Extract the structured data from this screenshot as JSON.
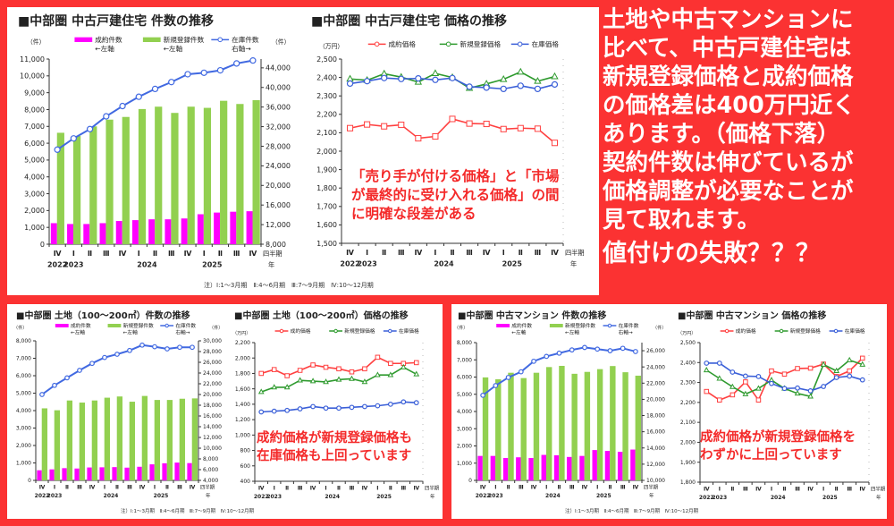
{
  "colors": {
    "background": "#fb3232",
    "contract": "#ff00ff",
    "new_listing": "#92d050",
    "stock": "#4169e1",
    "price_contract": "#ff4040",
    "price_new": "#2e9a2e",
    "price_stock": "#3a5fd8"
  },
  "message": {
    "lines": [
      "土地や中古マンションに",
      "比べて、中古戸建住宅は",
      "新規登録価格と成約価格",
      "の価格差は400万円近く",
      "あります。（価格下落）",
      "契約件数は伸びているが",
      "価格調整が必要なことが",
      "見て取れます。"
    ],
    "headline": "値付けの失敗？？？"
  },
  "footnote": "注）Ⅰ:1〜3月期　Ⅱ:4〜6月期　Ⅲ:7〜9月期　Ⅳ:10〜12月期",
  "annotations": {
    "house_price": [
      "「売り手が付ける価格」と「市場",
      "が最終的に受け入れる価格」の間",
      "に明確な段差がある"
    ],
    "land_price": [
      "成約価格が新規登録価格も",
      "在庫価格も上回っています"
    ],
    "mansion_price": [
      "成約価格が新規登録価格を",
      "わずかに上回っています"
    ]
  },
  "chart_data": [
    {
      "type": "bar+line",
      "title": "■中部圏 中古戸建住宅 件数の推移",
      "categories": [
        "Ⅳ",
        "Ⅰ",
        "Ⅱ",
        "Ⅲ",
        "Ⅳ",
        "Ⅰ",
        "Ⅱ",
        "Ⅲ",
        "Ⅳ",
        "Ⅰ",
        "Ⅱ",
        "Ⅲ",
        "Ⅳ"
      ],
      "years": [
        {
          "label": "2022",
          "at": 0
        },
        {
          "label": "2023",
          "at": 1
        },
        {
          "label": "2024",
          "at": 5.5
        },
        {
          "label": "2025",
          "at": 9.5
        }
      ],
      "xaxis_suffix": [
        "四半期",
        "年"
      ],
      "ylabel_left": "（件）",
      "ylabel_right": "（件）",
      "ylim_left": [
        0,
        11000
      ],
      "ystep_left": 1000,
      "ylim_right": [
        8000,
        45800
      ],
      "yticks_right": [
        8000,
        12000,
        16000,
        20000,
        24000,
        28000,
        32000,
        36000,
        40000,
        44000
      ],
      "series": [
        {
          "name": "成約件数",
          "sub": "←左軸",
          "kind": "bar",
          "axis": "left",
          "color": "#ff00ff",
          "values": [
            1250,
            1200,
            1200,
            1250,
            1380,
            1430,
            1480,
            1480,
            1530,
            1780,
            1880,
            1930,
            1960
          ]
        },
        {
          "name": "新規登録件数",
          "sub": "←左軸",
          "kind": "bar",
          "axis": "left",
          "color": "#92d050",
          "values": [
            6620,
            6430,
            7000,
            7400,
            7560,
            8030,
            8170,
            7800,
            8170,
            8100,
            8520,
            8330,
            8560
          ]
        },
        {
          "name": "在庫件数",
          "sub": "右軸→",
          "kind": "line",
          "axis": "right",
          "color": "#4169e1",
          "marker": "circle",
          "values": [
            27300,
            29600,
            31500,
            34100,
            36200,
            38100,
            39700,
            41100,
            42700,
            43000,
            43500,
            44900,
            45500
          ]
        }
      ]
    },
    {
      "type": "line",
      "title": "■中部圏 中古戸建住宅 価格の推移",
      "categories": [
        "Ⅳ",
        "Ⅰ",
        "Ⅱ",
        "Ⅲ",
        "Ⅳ",
        "Ⅰ",
        "Ⅱ",
        "Ⅲ",
        "Ⅳ",
        "Ⅰ",
        "Ⅱ",
        "Ⅲ",
        "Ⅳ"
      ],
      "years": [
        {
          "label": "2022",
          "at": 0
        },
        {
          "label": "2023",
          "at": 1
        },
        {
          "label": "2024",
          "at": 5.5
        },
        {
          "label": "2025",
          "at": 9.5
        }
      ],
      "xaxis_suffix": [
        "四半期",
        "年"
      ],
      "ylabel_left": "（万円）",
      "ylim_left": [
        1500,
        2500
      ],
      "ystep_left": 100,
      "series": [
        {
          "name": "成約価格",
          "kind": "line",
          "axis": "left",
          "color": "#ff4040",
          "marker": "square",
          "values": [
            2125,
            2145,
            2135,
            2143,
            2070,
            2080,
            2175,
            2150,
            2148,
            2120,
            2125,
            2122,
            2045
          ]
        },
        {
          "name": "新規登録価格",
          "kind": "line",
          "axis": "left",
          "color": "#2e9a2e",
          "marker": "triangle",
          "values": [
            2392,
            2385,
            2420,
            2402,
            2375,
            2422,
            2400,
            2342,
            2365,
            2390,
            2430,
            2380,
            2405
          ]
        },
        {
          "name": "在庫価格",
          "kind": "line",
          "axis": "left",
          "color": "#3a5fd8",
          "marker": "circle",
          "values": [
            2367,
            2380,
            2397,
            2392,
            2395,
            2387,
            2397,
            2350,
            2345,
            2338,
            2355,
            2338,
            2362
          ]
        }
      ]
    },
    {
      "type": "bar+line",
      "title": "■中部圏 土地（100〜200㎡）件数の推移",
      "categories": [
        "Ⅳ",
        "Ⅰ",
        "Ⅱ",
        "Ⅲ",
        "Ⅳ",
        "Ⅰ",
        "Ⅱ",
        "Ⅲ",
        "Ⅳ",
        "Ⅰ",
        "Ⅱ",
        "Ⅲ",
        "Ⅳ"
      ],
      "years": [
        {
          "label": "2022",
          "at": 0
        },
        {
          "label": "2023",
          "at": 1
        },
        {
          "label": "2024",
          "at": 5.5
        },
        {
          "label": "2025",
          "at": 9.5
        }
      ],
      "xaxis_suffix": [
        "四半期",
        "年"
      ],
      "ylabel_left": "（件）",
      "ylabel_right": "（件）",
      "ylim_left": [
        0,
        8000
      ],
      "ystep_left": 1000,
      "ylim_right": [
        4000,
        30000
      ],
      "yticks_right": [
        4000,
        6000,
        8000,
        10000,
        12000,
        14000,
        16000,
        18000,
        20000,
        22000,
        24000,
        26000,
        28000,
        30000
      ],
      "series": [
        {
          "name": "成約件数",
          "sub": "←左軸",
          "kind": "bar",
          "axis": "left",
          "color": "#ff00ff",
          "values": [
            580,
            630,
            700,
            680,
            740,
            750,
            760,
            730,
            780,
            920,
            980,
            1020,
            990
          ]
        },
        {
          "name": "新規登録件数",
          "sub": "←左軸",
          "kind": "bar",
          "axis": "left",
          "color": "#92d050",
          "values": [
            4130,
            4020,
            4580,
            4460,
            4580,
            4740,
            4810,
            4510,
            4840,
            4610,
            4610,
            4680,
            4700
          ]
        },
        {
          "name": "在庫件数",
          "sub": "右軸→",
          "kind": "line",
          "axis": "right",
          "color": "#4169e1",
          "marker": "circle",
          "values": [
            20000,
            21700,
            23100,
            24500,
            25800,
            26900,
            27500,
            28200,
            29200,
            28900,
            28500,
            28800,
            28800
          ]
        }
      ]
    },
    {
      "type": "line",
      "title": "■中部圏 土地（100〜200㎡）価格の推移",
      "categories": [
        "Ⅳ",
        "Ⅰ",
        "Ⅱ",
        "Ⅲ",
        "Ⅳ",
        "Ⅰ",
        "Ⅱ",
        "Ⅲ",
        "Ⅳ",
        "Ⅰ",
        "Ⅱ",
        "Ⅲ",
        "Ⅳ"
      ],
      "years": [
        {
          "label": "2022",
          "at": 0
        },
        {
          "label": "2023",
          "at": 1
        },
        {
          "label": "2024",
          "at": 5.5
        },
        {
          "label": "2025",
          "at": 9.5
        }
      ],
      "xaxis_suffix": [
        "四半期",
        "年"
      ],
      "ylabel_left": "（万円）",
      "ylim_left": [
        400,
        2200
      ],
      "ystep_left": 200,
      "series": [
        {
          "name": "成約価格",
          "kind": "line",
          "axis": "left",
          "color": "#ff4040",
          "marker": "square",
          "values": [
            1800,
            1850,
            1770,
            1840,
            1910,
            1880,
            1860,
            1820,
            1860,
            2010,
            1930,
            1930,
            1940
          ]
        },
        {
          "name": "新規登録価格",
          "kind": "line",
          "axis": "left",
          "color": "#2e9a2e",
          "marker": "triangle",
          "values": [
            1560,
            1620,
            1620,
            1710,
            1700,
            1690,
            1720,
            1730,
            1690,
            1780,
            1780,
            1880,
            1790
          ]
        },
        {
          "name": "在庫価格",
          "kind": "line",
          "axis": "left",
          "color": "#3a5fd8",
          "marker": "circle",
          "values": [
            1300,
            1310,
            1320,
            1340,
            1370,
            1350,
            1350,
            1360,
            1370,
            1380,
            1400,
            1430,
            1420
          ]
        }
      ]
    },
    {
      "type": "bar+line",
      "title": "■中部圏 中古マンション 件数の推移",
      "categories": [
        "Ⅳ",
        "Ⅰ",
        "Ⅱ",
        "Ⅲ",
        "Ⅳ",
        "Ⅰ",
        "Ⅱ",
        "Ⅲ",
        "Ⅳ",
        "Ⅰ",
        "Ⅱ",
        "Ⅲ",
        "Ⅳ"
      ],
      "years": [
        {
          "label": "2022",
          "at": 0
        },
        {
          "label": "2023",
          "at": 1
        },
        {
          "label": "2024",
          "at": 5.5
        },
        {
          "label": "2025",
          "at": 9.5
        }
      ],
      "xaxis_suffix": [
        "四半期",
        "年"
      ],
      "ylabel_left": "（件）",
      "ylabel_right": "（件）",
      "ylim_left": [
        0,
        8000
      ],
      "ystep_left": 1000,
      "ylim_right": [
        10000,
        27000
      ],
      "yticks_right": [
        10000,
        12000,
        14000,
        16000,
        18000,
        20000,
        22000,
        24000,
        26000
      ],
      "series": [
        {
          "name": "成約件数",
          "sub": "←左軸",
          "kind": "bar",
          "axis": "left",
          "color": "#ff00ff",
          "values": [
            1420,
            1420,
            1300,
            1340,
            1300,
            1480,
            1460,
            1360,
            1420,
            1760,
            1710,
            1660,
            1790
          ]
        },
        {
          "name": "新規登録件数",
          "sub": "←左軸",
          "kind": "bar",
          "axis": "left",
          "color": "#92d050",
          "values": [
            5980,
            5870,
            6250,
            5940,
            6250,
            6580,
            6650,
            6190,
            6300,
            6460,
            6640,
            6280,
            6080
          ]
        },
        {
          "name": "在庫件数",
          "sub": "右軸→",
          "kind": "line",
          "axis": "right",
          "color": "#4169e1",
          "marker": "circle",
          "values": [
            20500,
            21700,
            22700,
            23400,
            24700,
            25300,
            25700,
            26100,
            26400,
            26200,
            26000,
            26300,
            25900
          ]
        }
      ]
    },
    {
      "type": "line",
      "title": "■中部圏 中古マンション 価格の推移",
      "categories": [
        "Ⅳ",
        "Ⅰ",
        "Ⅱ",
        "Ⅲ",
        "Ⅳ",
        "Ⅰ",
        "Ⅱ",
        "Ⅲ",
        "Ⅳ",
        "Ⅰ",
        "Ⅱ",
        "Ⅲ",
        "Ⅳ"
      ],
      "years": [
        {
          "label": "2022",
          "at": 0
        },
        {
          "label": "2023",
          "at": 1
        },
        {
          "label": "2024",
          "at": 5.5
        },
        {
          "label": "2025",
          "at": 9.5
        }
      ],
      "xaxis_suffix": [
        "四半期",
        "年"
      ],
      "ylabel_left": "（万円）",
      "ylim_left": [
        1800,
        2500
      ],
      "ystep_left": 100,
      "series": [
        {
          "name": "成約価格",
          "kind": "line",
          "axis": "left",
          "color": "#ff4040",
          "marker": "square",
          "values": [
            2255,
            2212,
            2238,
            2303,
            2212,
            2358,
            2342,
            2370,
            2372,
            2392,
            2330,
            2358,
            2422
          ]
        },
        {
          "name": "新規登録価格",
          "kind": "line",
          "axis": "left",
          "color": "#2e9a2e",
          "marker": "triangle",
          "values": [
            2362,
            2320,
            2278,
            2242,
            2270,
            2312,
            2270,
            2245,
            2230,
            2390,
            2358,
            2412,
            2390
          ]
        },
        {
          "name": "在庫価格",
          "kind": "line",
          "axis": "left",
          "color": "#3a5fd8",
          "marker": "circle",
          "values": [
            2397,
            2397,
            2352,
            2332,
            2330,
            2295,
            2270,
            2272,
            2258,
            2280,
            2325,
            2332,
            2313
          ]
        }
      ]
    }
  ]
}
